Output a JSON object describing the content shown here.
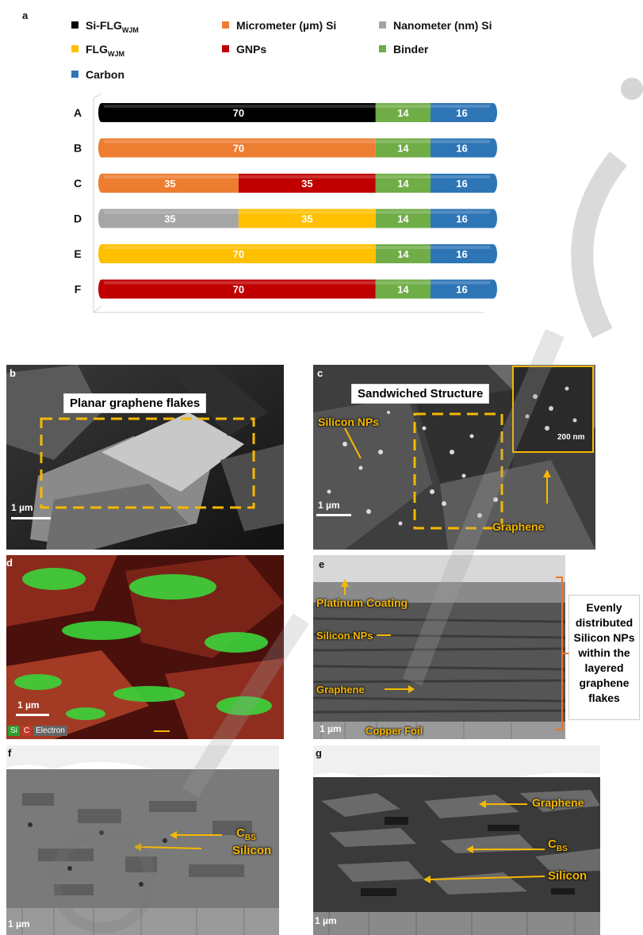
{
  "panel_a": {
    "label": "a",
    "legend": [
      {
        "text": "Si-FLG",
        "sub": "WJM",
        "color": "#000000"
      },
      {
        "text": "Micrometer (µm) Si",
        "sub": "",
        "color": "#ed7d31"
      },
      {
        "text": "Nanometer (nm) Si",
        "sub": "",
        "color": "#a5a5a5"
      },
      {
        "text": "FLG",
        "sub": "WJM",
        "color": "#ffc000"
      },
      {
        "text": "GNPs",
        "sub": "",
        "color": "#c00000"
      },
      {
        "text": "Binder",
        "sub": "",
        "color": "#70ad47"
      },
      {
        "text": "Carbon",
        "sub": "",
        "color": "#2e75b6"
      }
    ]
  },
  "chart_data": {
    "type": "bar",
    "orientation": "horizontal",
    "stacked": true,
    "categories": [
      "A",
      "B",
      "C",
      "D",
      "E",
      "F"
    ],
    "segments": [
      [
        {
          "value": 70,
          "color": "#000000"
        },
        {
          "value": 14,
          "color": "#70ad47"
        },
        {
          "value": 16,
          "color": "#2e75b6"
        }
      ],
      [
        {
          "value": 70,
          "color": "#ed7d31"
        },
        {
          "value": 14,
          "color": "#70ad47"
        },
        {
          "value": 16,
          "color": "#2e75b6"
        }
      ],
      [
        {
          "value": 35,
          "color": "#ed7d31"
        },
        {
          "value": 35,
          "color": "#c00000"
        },
        {
          "value": 14,
          "color": "#70ad47"
        },
        {
          "value": 16,
          "color": "#2e75b6"
        }
      ],
      [
        {
          "value": 35,
          "color": "#a5a5a5"
        },
        {
          "value": 35,
          "color": "#ffc000"
        },
        {
          "value": 14,
          "color": "#70ad47"
        },
        {
          "value": 16,
          "color": "#2e75b6"
        }
      ],
      [
        {
          "value": 70,
          "color": "#ffc000"
        },
        {
          "value": 14,
          "color": "#70ad47"
        },
        {
          "value": 16,
          "color": "#2e75b6"
        }
      ],
      [
        {
          "value": 70,
          "color": "#c00000"
        },
        {
          "value": 14,
          "color": "#70ad47"
        },
        {
          "value": 16,
          "color": "#2e75b6"
        }
      ]
    ],
    "xlim": [
      0,
      100
    ]
  },
  "panel_b": {
    "label": "b",
    "title": "Planar graphene flakes",
    "scale": "1 µm"
  },
  "panel_c": {
    "label": "c",
    "title": "Sandwiched Structure",
    "silicon": "Silicon NPs",
    "graphene": "Graphene",
    "scale": "1 µm",
    "inset_scale": "200 nm"
  },
  "panel_d": {
    "label": "d",
    "scale": "1 µm",
    "si": "Si",
    "c": "C",
    "electron": "Electron"
  },
  "panel_e": {
    "label": "e",
    "platinum": "Platinum Coating",
    "silicon": "Silicon NPs",
    "graphene": "Graphene",
    "copper": "Copper Foil",
    "scale": "1 µm",
    "side_lines": [
      "Evenly",
      "distributed",
      "Silicon NPs",
      "within the",
      "layered",
      "graphene",
      "flakes"
    ]
  },
  "panel_f": {
    "label": "f",
    "cbs": "C",
    "cbs_sub": "BS",
    "silicon": "Silicon",
    "scale": "1 µm"
  },
  "panel_g": {
    "label": "g",
    "graphene": "Graphene",
    "cbs": "C",
    "cbs_sub": "BS",
    "silicon": "Silicon",
    "scale": "1 µm"
  },
  "colors": {
    "annotation": "#f5b800",
    "bracket": "#e8742a",
    "accent_box": "#f5b800"
  }
}
